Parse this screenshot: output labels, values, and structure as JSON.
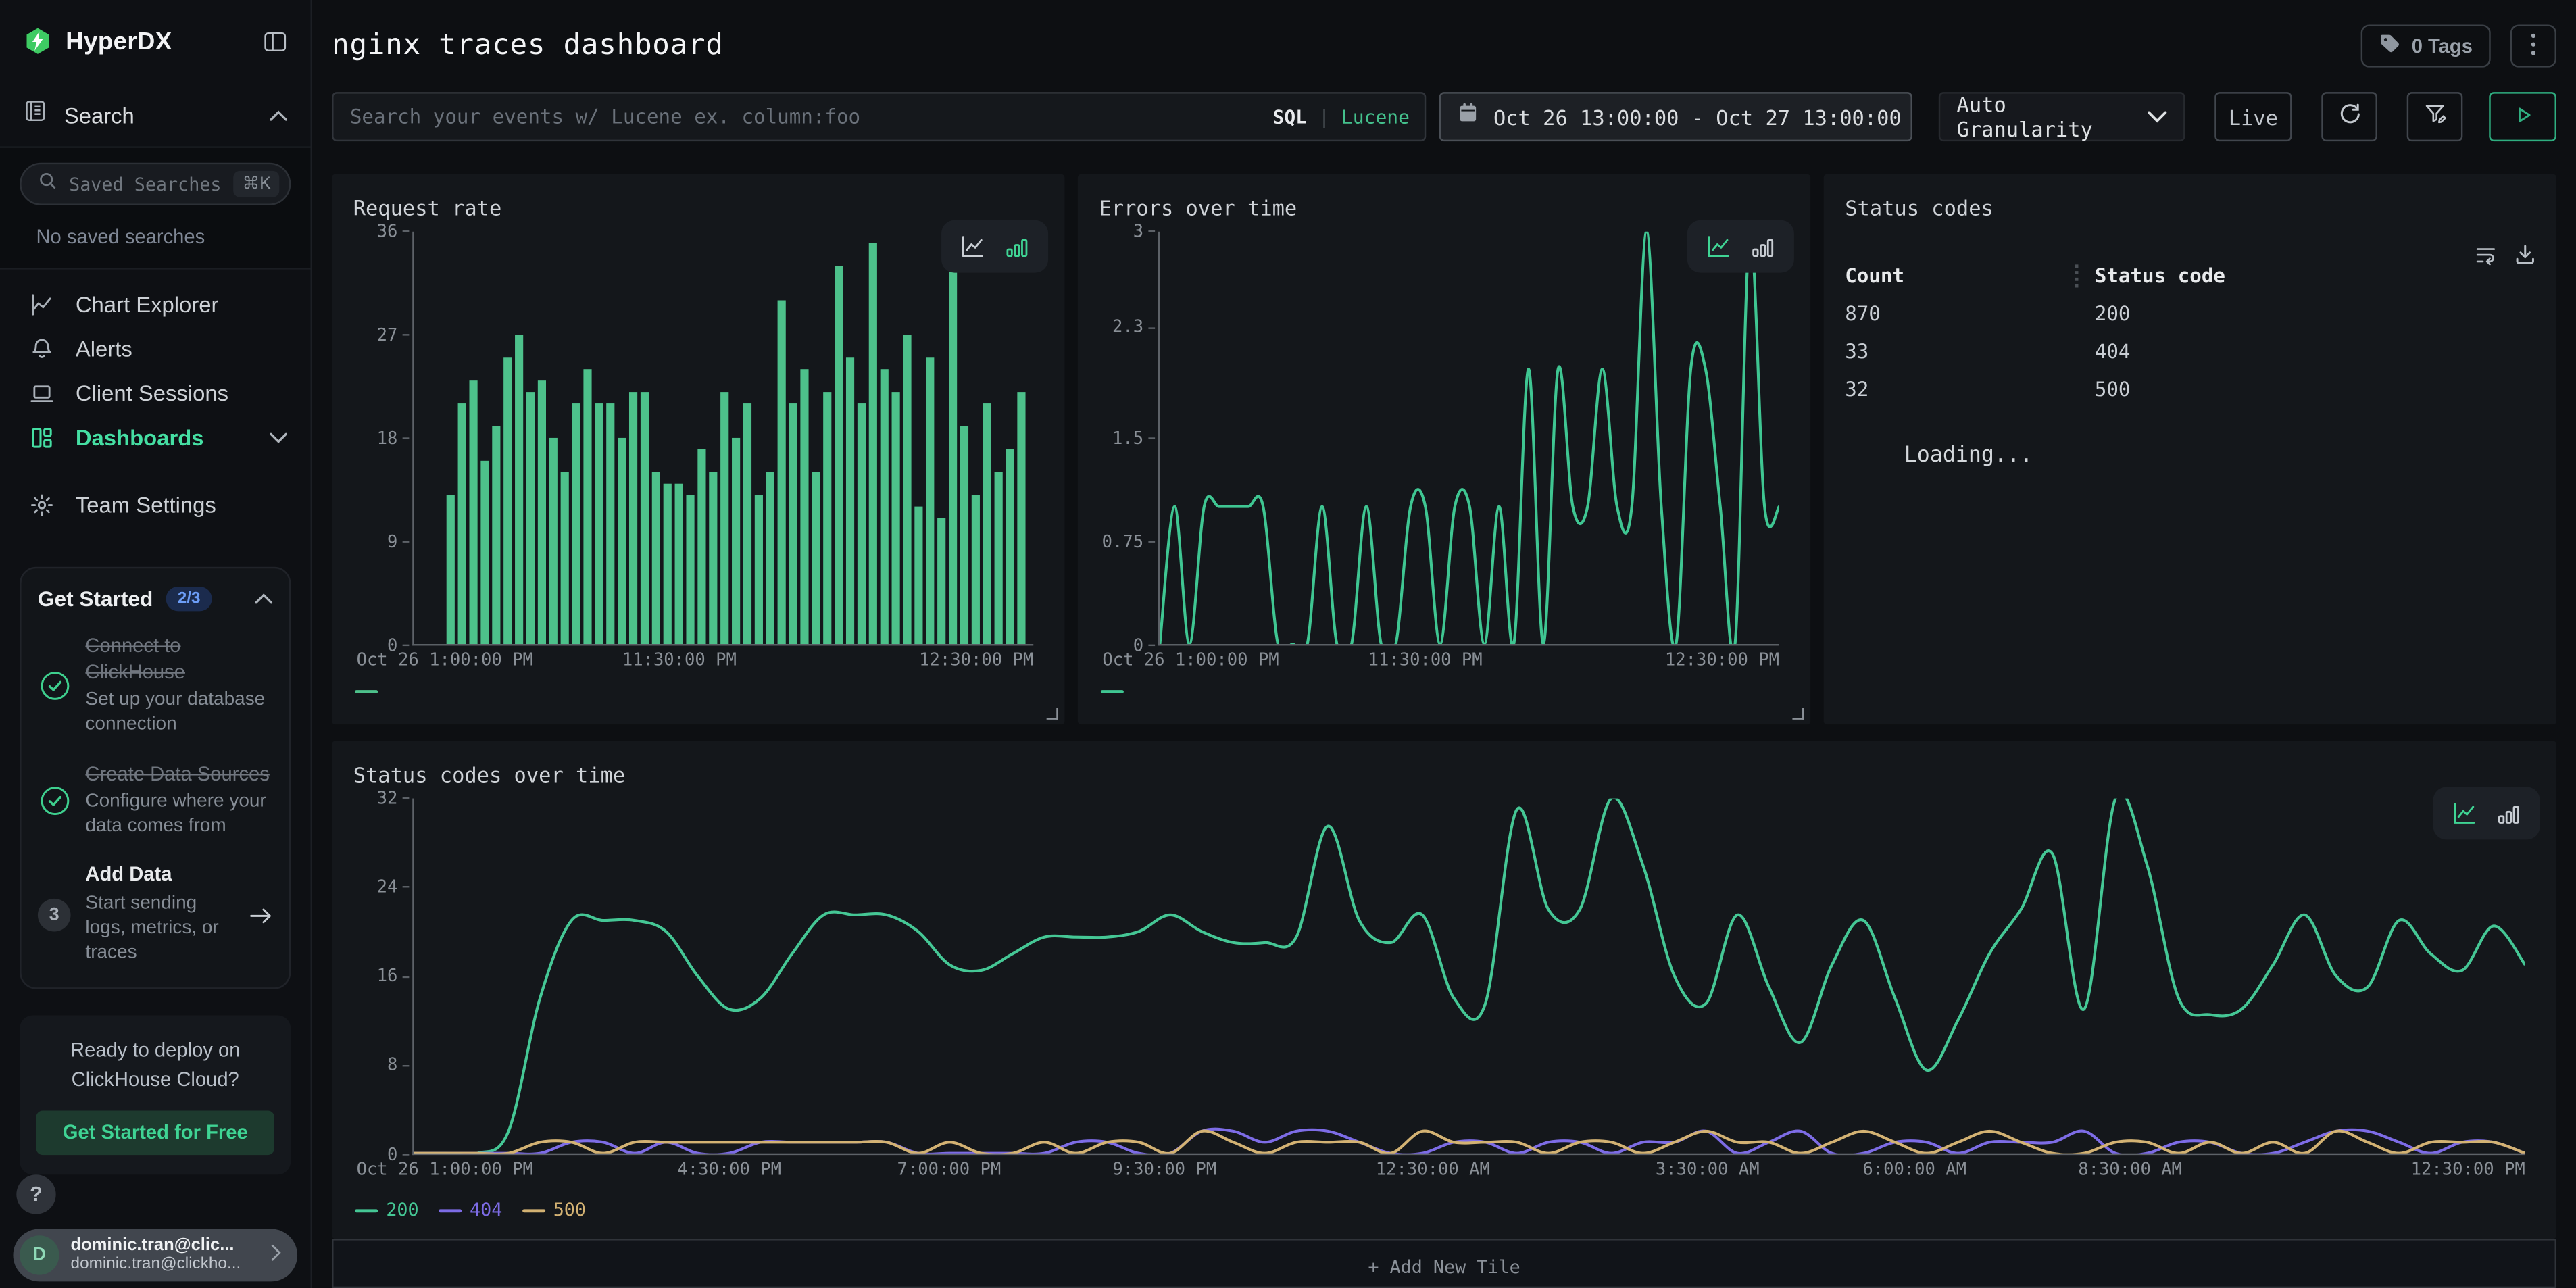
{
  "sidebar": {
    "logo": "HyperDX",
    "search_header": "Search",
    "saved_placeholder": "Saved Searches",
    "saved_shortcut": "⌘K",
    "no_saved": "No saved searches",
    "menu": [
      {
        "id": "chart-explorer",
        "label": "Chart Explorer",
        "icon": "line-chart",
        "active": false,
        "chevron": false
      },
      {
        "id": "alerts",
        "label": "Alerts",
        "icon": "bell",
        "active": false,
        "chevron": false
      },
      {
        "id": "client-sessions",
        "label": "Client Sessions",
        "icon": "laptop",
        "active": false,
        "chevron": false
      },
      {
        "id": "dashboards",
        "label": "Dashboards",
        "icon": "grid",
        "active": true,
        "chevron": true
      },
      {
        "id": "team-settings",
        "label": "Team Settings",
        "icon": "gear",
        "active": false,
        "chevron": false,
        "gap": true
      }
    ],
    "get_started": {
      "title": "Get Started",
      "badge": "2/3",
      "items": [
        {
          "state": "done",
          "title": "Connect to ClickHouse",
          "desc": "Set up your database connection"
        },
        {
          "state": "done",
          "title": "Create Data Sources",
          "desc": "Configure where your data comes from"
        },
        {
          "state": "todo",
          "number": "3",
          "title": "Add Data",
          "desc": "Start sending logs, metrics, or traces",
          "arrow": true
        }
      ]
    },
    "cloud": {
      "line1": "Ready to deploy on",
      "line2": "ClickHouse Cloud?",
      "cta": "Get Started for Free"
    },
    "help": "?",
    "user": {
      "initial": "D",
      "name": "dominic.tran@clic...",
      "email": "dominic.tran@clickho..."
    }
  },
  "header": {
    "title": "nginx traces dashboard",
    "tags": "0 Tags"
  },
  "filters": {
    "search_placeholder": "Search your events w/ Lucene ex. column:foo",
    "sql": "SQL",
    "divider": "|",
    "lucene": "Lucene",
    "date_range": "Oct 26 13:00:00 - Oct 27 13:00:00",
    "granularity": "Auto Granularity",
    "live": "Live"
  },
  "chart_data": [
    {
      "id": "request_rate",
      "type": "bar",
      "title": "Request rate",
      "view": "bar",
      "color": "#4dc18b",
      "ylim": [
        0,
        36
      ],
      "grid": false,
      "legend_position": "bottom-left",
      "yticks": [
        "0",
        "9",
        "18",
        "27",
        "36"
      ],
      "xticks": [
        "Oct 26 1:00:00 PM",
        "11:30:00 PM",
        "12:30:00 PM"
      ],
      "values": [
        13,
        21,
        23,
        16,
        19,
        25,
        27,
        22,
        23,
        18,
        15,
        21,
        24,
        21,
        21,
        18,
        22,
        22,
        15,
        14,
        14,
        13,
        17,
        15,
        22,
        18,
        21,
        13,
        15,
        30,
        21,
        24,
        15,
        22,
        33,
        25,
        21,
        35,
        24,
        22,
        27,
        12,
        25,
        11,
        34,
        19,
        13,
        21,
        15,
        17,
        22
      ]
    },
    {
      "id": "errors",
      "type": "line",
      "title": "Errors over time",
      "view": "line",
      "color": "#3fc692",
      "ylim": [
        0,
        3
      ],
      "grid": false,
      "legend_position": "bottom-left",
      "yticks": [
        "0",
        "0.75",
        "1.5",
        "2.3",
        "3"
      ],
      "xticks": [
        "Oct 26 1:00:00 PM",
        "11:30:00 PM",
        "12:30:00 PM"
      ],
      "values": [
        0,
        1,
        0,
        1,
        1,
        1,
        1,
        1,
        0,
        0,
        0,
        1,
        0,
        0,
        1,
        0,
        0,
        1,
        1,
        0,
        1,
        1,
        0,
        1,
        0,
        2,
        0,
        2,
        1,
        1,
        2,
        1,
        1,
        3,
        1,
        0,
        2,
        2,
        1,
        0,
        3,
        1,
        1
      ]
    },
    {
      "id": "status_codes",
      "type": "table",
      "title": "Status codes",
      "columns": [
        "Count",
        "Status code"
      ],
      "rows": [
        [
          "870",
          "200"
        ],
        [
          "33",
          "404"
        ],
        [
          "32",
          "500"
        ]
      ],
      "loading": "Loading..."
    },
    {
      "id": "status_over_time",
      "type": "line",
      "title": "Status codes over time",
      "view": "line",
      "ylim": [
        0,
        32
      ],
      "grid": false,
      "legend_position": "bottom-left",
      "yticks": [
        "0",
        "8",
        "16",
        "24",
        "32"
      ],
      "xticks": [
        "Oct 26 1:00:00 PM",
        "4:30:00 PM",
        "7:00:00 PM",
        "9:30:00 PM",
        "12:30:00 AM",
        "3:30:00 AM",
        "6:00:00 AM",
        "8:30:00 AM",
        "12:30:00 PM"
      ],
      "series": [
        {
          "name": "200",
          "color": "#45c795",
          "values": [
            0,
            0,
            0,
            2,
            14,
            21,
            21,
            21,
            20,
            16,
            13,
            14,
            18,
            21.5,
            21.5,
            21.5,
            20,
            17,
            16.5,
            18,
            19.5,
            19.5,
            19.5,
            20,
            21.5,
            20,
            19,
            19,
            19.5,
            29.5,
            21,
            19,
            21.5,
            14,
            13.5,
            31,
            22,
            22,
            32,
            26,
            16,
            13.5,
            21.5,
            15,
            10,
            17,
            21,
            14,
            7.5,
            12,
            18,
            22,
            27,
            13,
            32,
            26,
            14,
            12.5,
            13,
            17,
            21.5,
            16,
            15,
            21,
            18,
            16.5,
            20.5,
            17
          ]
        },
        {
          "name": "404",
          "color": "#7d6ce6",
          "values": [
            0,
            0,
            0,
            0,
            0,
            1,
            1,
            0,
            1,
            0,
            0,
            1,
            1,
            1,
            1,
            1,
            0,
            0,
            0,
            0,
            0,
            1,
            1,
            0,
            0,
            2,
            2,
            1,
            2,
            2,
            1,
            0,
            0,
            1,
            1,
            0,
            1,
            1,
            0,
            1,
            1,
            2,
            0,
            1,
            2,
            0,
            0,
            1,
            1,
            0,
            1,
            1,
            1,
            2,
            0,
            0,
            1,
            1,
            0,
            0,
            1,
            2,
            2,
            1,
            0,
            1,
            1,
            0
          ]
        },
        {
          "name": "500",
          "color": "#d3b273",
          "values": [
            0,
            0,
            0,
            0,
            1,
            1,
            0,
            1,
            1,
            1,
            1,
            1,
            1,
            1,
            1,
            1,
            0,
            1,
            0,
            0,
            1,
            0,
            1,
            1,
            0,
            2,
            1,
            0,
            1,
            1,
            1,
            0,
            2,
            1,
            1,
            1,
            0,
            1,
            1,
            0,
            1,
            2,
            1,
            1,
            0,
            1,
            2,
            1,
            0,
            1,
            2,
            1,
            0,
            0,
            1,
            1,
            0,
            1,
            0,
            1,
            0,
            2,
            1,
            0,
            1,
            1,
            1,
            0
          ]
        }
      ]
    }
  ],
  "add_tile": "+ Add New Tile"
}
